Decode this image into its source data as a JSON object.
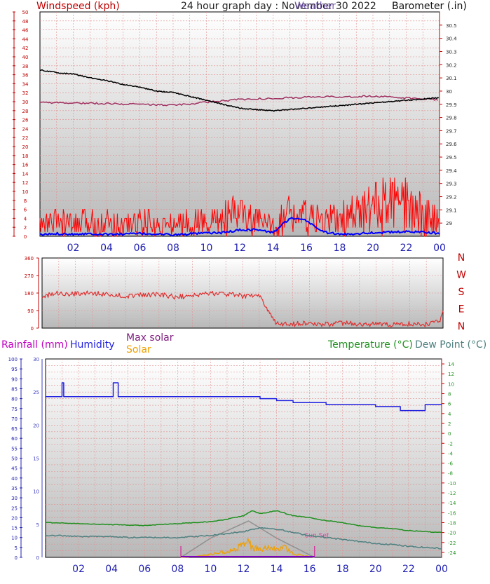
{
  "header": {
    "windspeed_label": "Windspeed (kph)",
    "title": "24 hour graph day : November 30 2022",
    "overlay_title": "Weather",
    "barometer_label": "Barometer (.in)"
  },
  "x_ticks": [
    "02",
    "04",
    "06",
    "08",
    "10",
    "12",
    "14",
    "16",
    "18",
    "20",
    "22",
    "00"
  ],
  "dir_labels": [
    "N",
    "W",
    "S",
    "E",
    "N"
  ],
  "legend": {
    "rainfall": "Rainfall (mm)",
    "humidity": "Humidity",
    "max_solar": "Max solar",
    "solar": "Solar",
    "temperature": "Temperature (°C)",
    "dew_point": "Dew Point (°C)",
    "sun_set": "Sun Set"
  },
  "colors": {
    "wind_gust": "#ff0000",
    "wind_avg": "#0000ff",
    "barometer": "#000000",
    "wind_grid_line": "#a03060",
    "direction": "#e03030",
    "humidity": "#2020e0",
    "temperature": "#209020",
    "dew_point": "#508080",
    "solar": "#f0a000",
    "max_solar": "#909090",
    "sun_marker": "#d040a0",
    "axis_red": "#c00000",
    "axis_blue": "#2020b0",
    "gridline": "#e09090"
  },
  "chart_data": [
    {
      "type": "line",
      "title": "24 hour graph day : November 30 2022",
      "ylabel_left": "Windspeed (kph)",
      "ylabel_right": "Barometer (.in)",
      "x_range_hours": [
        0,
        24
      ],
      "left_axis": {
        "min": 0,
        "max": 50,
        "ticks": [
          0,
          2,
          4,
          6,
          8,
          10,
          12,
          14,
          16,
          18,
          20,
          22,
          24,
          26,
          28,
          30,
          32,
          34,
          36,
          38,
          40,
          42,
          44,
          46,
          48,
          50
        ]
      },
      "right_axis": {
        "min": 28.9,
        "max": 30.6,
        "ticks": [
          29,
          29.1,
          29.2,
          29.3,
          29.4,
          29.5,
          29.6,
          29.7,
          29.8,
          29.9,
          30,
          30.1,
          30.2,
          30.3,
          30.4,
          30.5
        ]
      },
      "series": [
        {
          "name": "Barometer",
          "axis": "right",
          "x": [
            0,
            1,
            2,
            3,
            4,
            5,
            6,
            7,
            8,
            9,
            10,
            11,
            12,
            13,
            14,
            15,
            16,
            17,
            18,
            19,
            20,
            21,
            22,
            23,
            24
          ],
          "y": [
            30.16,
            30.14,
            30.13,
            30.1,
            30.08,
            30.05,
            30.03,
            30.0,
            29.99,
            29.96,
            29.93,
            29.9,
            29.87,
            29.86,
            29.85,
            29.86,
            29.87,
            29.88,
            29.89,
            29.9,
            29.91,
            29.92,
            29.93,
            29.94,
            29.95
          ]
        },
        {
          "name": "Wind average",
          "axis": "left",
          "x": [
            0,
            1,
            2,
            3,
            4,
            5,
            6,
            7,
            8,
            9,
            10,
            11,
            12,
            13,
            14,
            15,
            16,
            17,
            18,
            19,
            20,
            21,
            22,
            23,
            24
          ],
          "y": [
            0.3,
            0.6,
            0.5,
            0.6,
            0.4,
            0.5,
            0.6,
            0.5,
            0.3,
            0.5,
            0.7,
            0.8,
            1.4,
            1.5,
            0.8,
            4.0,
            3.5,
            1.0,
            0.4,
            0.6,
            0.8,
            0.9,
            1.0,
            1.0,
            0.6
          ]
        },
        {
          "name": "Wind gust",
          "axis": "left",
          "x": [
            0,
            1,
            2,
            3,
            4,
            5,
            6,
            7,
            8,
            9,
            10,
            11,
            12,
            13,
            14,
            15,
            16,
            17,
            18,
            19,
            20,
            21,
            22,
            23,
            24
          ],
          "y": [
            3,
            4,
            3,
            4,
            4,
            3,
            4,
            3,
            3,
            4,
            4,
            5,
            6,
            4,
            3,
            6,
            5,
            4,
            5,
            6,
            8,
            9,
            8,
            6,
            4
          ]
        },
        {
          "name": "Wind line",
          "axis": "left",
          "x": [
            0,
            4,
            8,
            12,
            16,
            20,
            24
          ],
          "y": [
            29.8,
            29.6,
            29.2,
            30.5,
            31.0,
            31.2,
            30.4
          ]
        }
      ]
    },
    {
      "type": "line",
      "x_range_hours": [
        0,
        24
      ],
      "y_axis": {
        "min": 0,
        "max": 360,
        "ticks": [
          0,
          90,
          180,
          270,
          360
        ]
      },
      "series": [
        {
          "name": "Wind direction",
          "x": [
            0,
            1,
            2,
            3,
            4,
            5,
            6,
            7,
            8,
            9,
            10,
            11,
            12,
            13,
            14,
            15,
            16,
            17,
            18,
            19,
            20,
            21,
            22,
            23,
            23.8,
            24
          ],
          "y": [
            165,
            180,
            175,
            180,
            170,
            165,
            170,
            175,
            160,
            165,
            180,
            175,
            165,
            170,
            20,
            20,
            25,
            20,
            25,
            22,
            20,
            18,
            22,
            20,
            40,
            80
          ]
        }
      ]
    },
    {
      "type": "line",
      "x_range_hours": [
        0,
        24
      ],
      "rainfall_axis": {
        "min": 0,
        "max": 30,
        "ticks": [
          0,
          5,
          10,
          15,
          20,
          25,
          30
        ]
      },
      "humidity_axis": {
        "min": 0,
        "max": 100,
        "ticks": [
          0,
          5,
          10,
          15,
          20,
          25,
          30,
          35,
          40,
          45,
          50,
          55,
          60,
          65,
          70,
          75,
          80,
          85,
          90,
          95,
          100
        ]
      },
      "temperature_axis": {
        "min": -25,
        "max": 15,
        "ticks": [
          -24,
          -22,
          -20,
          -18,
          -16,
          -14,
          -12,
          -10,
          -8,
          -6,
          -4,
          -2,
          0,
          2,
          4,
          6,
          8,
          10,
          12,
          14
        ]
      },
      "series": [
        {
          "name": "Humidity",
          "axis": "humidity",
          "x": [
            0,
            0.9,
            1.0,
            1.1,
            4.0,
            4.1,
            4.3,
            4.4,
            5,
            6,
            8,
            10,
            11,
            12,
            13,
            14,
            15,
            16,
            17,
            18,
            19,
            20,
            21,
            21.5,
            22,
            23,
            24
          ],
          "y": [
            81,
            81,
            88,
            81,
            81,
            88,
            88,
            81,
            81,
            81,
            81,
            81,
            81,
            81,
            80,
            79,
            78,
            78,
            77,
            77,
            77,
            76,
            76,
            74,
            74,
            77,
            77
          ]
        },
        {
          "name": "Temperature",
          "axis": "temperature",
          "x": [
            0,
            2,
            4,
            6,
            8,
            10,
            11,
            12,
            12.5,
            13,
            14,
            15,
            16,
            17,
            18,
            19,
            20,
            21,
            22,
            23,
            24
          ],
          "y": [
            -18,
            -18.2,
            -18.4,
            -18.6,
            -18.2,
            -17.8,
            -17.3,
            -16.6,
            -15.6,
            -16.2,
            -15.6,
            -16.6,
            -17.0,
            -17.6,
            -18.0,
            -18.6,
            -19.0,
            -19.2,
            -19.6,
            -19.8,
            -20.0
          ]
        },
        {
          "name": "Dew Point",
          "axis": "temperature",
          "x": [
            0,
            1,
            2,
            3,
            4,
            5,
            6,
            8,
            10,
            11,
            12,
            13,
            14,
            15,
            16,
            17,
            18,
            19,
            20,
            21,
            22,
            23,
            24
          ],
          "y": [
            -20.6,
            -20.6,
            -20.8,
            -20.8,
            -20.8,
            -21.0,
            -21.0,
            -21.0,
            -20.6,
            -20.2,
            -19.8,
            -19.0,
            -19.3,
            -20.0,
            -20.6,
            -21.0,
            -21.4,
            -21.8,
            -22.2,
            -22.4,
            -22.8,
            -23.0,
            -23.2
          ]
        },
        {
          "name": "Max solar",
          "axis": "rainfall",
          "x": [
            8.2,
            10,
            12.3,
            14,
            16.3
          ],
          "y": [
            0,
            2.9,
            5.5,
            2.9,
            0
          ]
        },
        {
          "name": "Solar",
          "axis": "rainfall",
          "x": [
            8.2,
            9,
            10,
            10.5,
            11,
            11.5,
            12,
            12.3,
            12.5,
            13,
            13.5,
            14,
            14.5,
            15,
            16,
            16.3
          ],
          "y": [
            0,
            0.1,
            0.5,
            0.8,
            0.9,
            1.3,
            2.0,
            2.4,
            1.6,
            1.2,
            1.5,
            1.3,
            1.5,
            0.6,
            0.1,
            0
          ]
        },
        {
          "name": "Rainfall",
          "axis": "rainfall",
          "x": [
            0,
            24
          ],
          "y": [
            0,
            0
          ]
        }
      ],
      "annotations": [
        {
          "label": "Sun Set",
          "x_hour": 16.3
        }
      ],
      "sun_markers_hours": [
        8.2,
        16.3
      ]
    }
  ]
}
